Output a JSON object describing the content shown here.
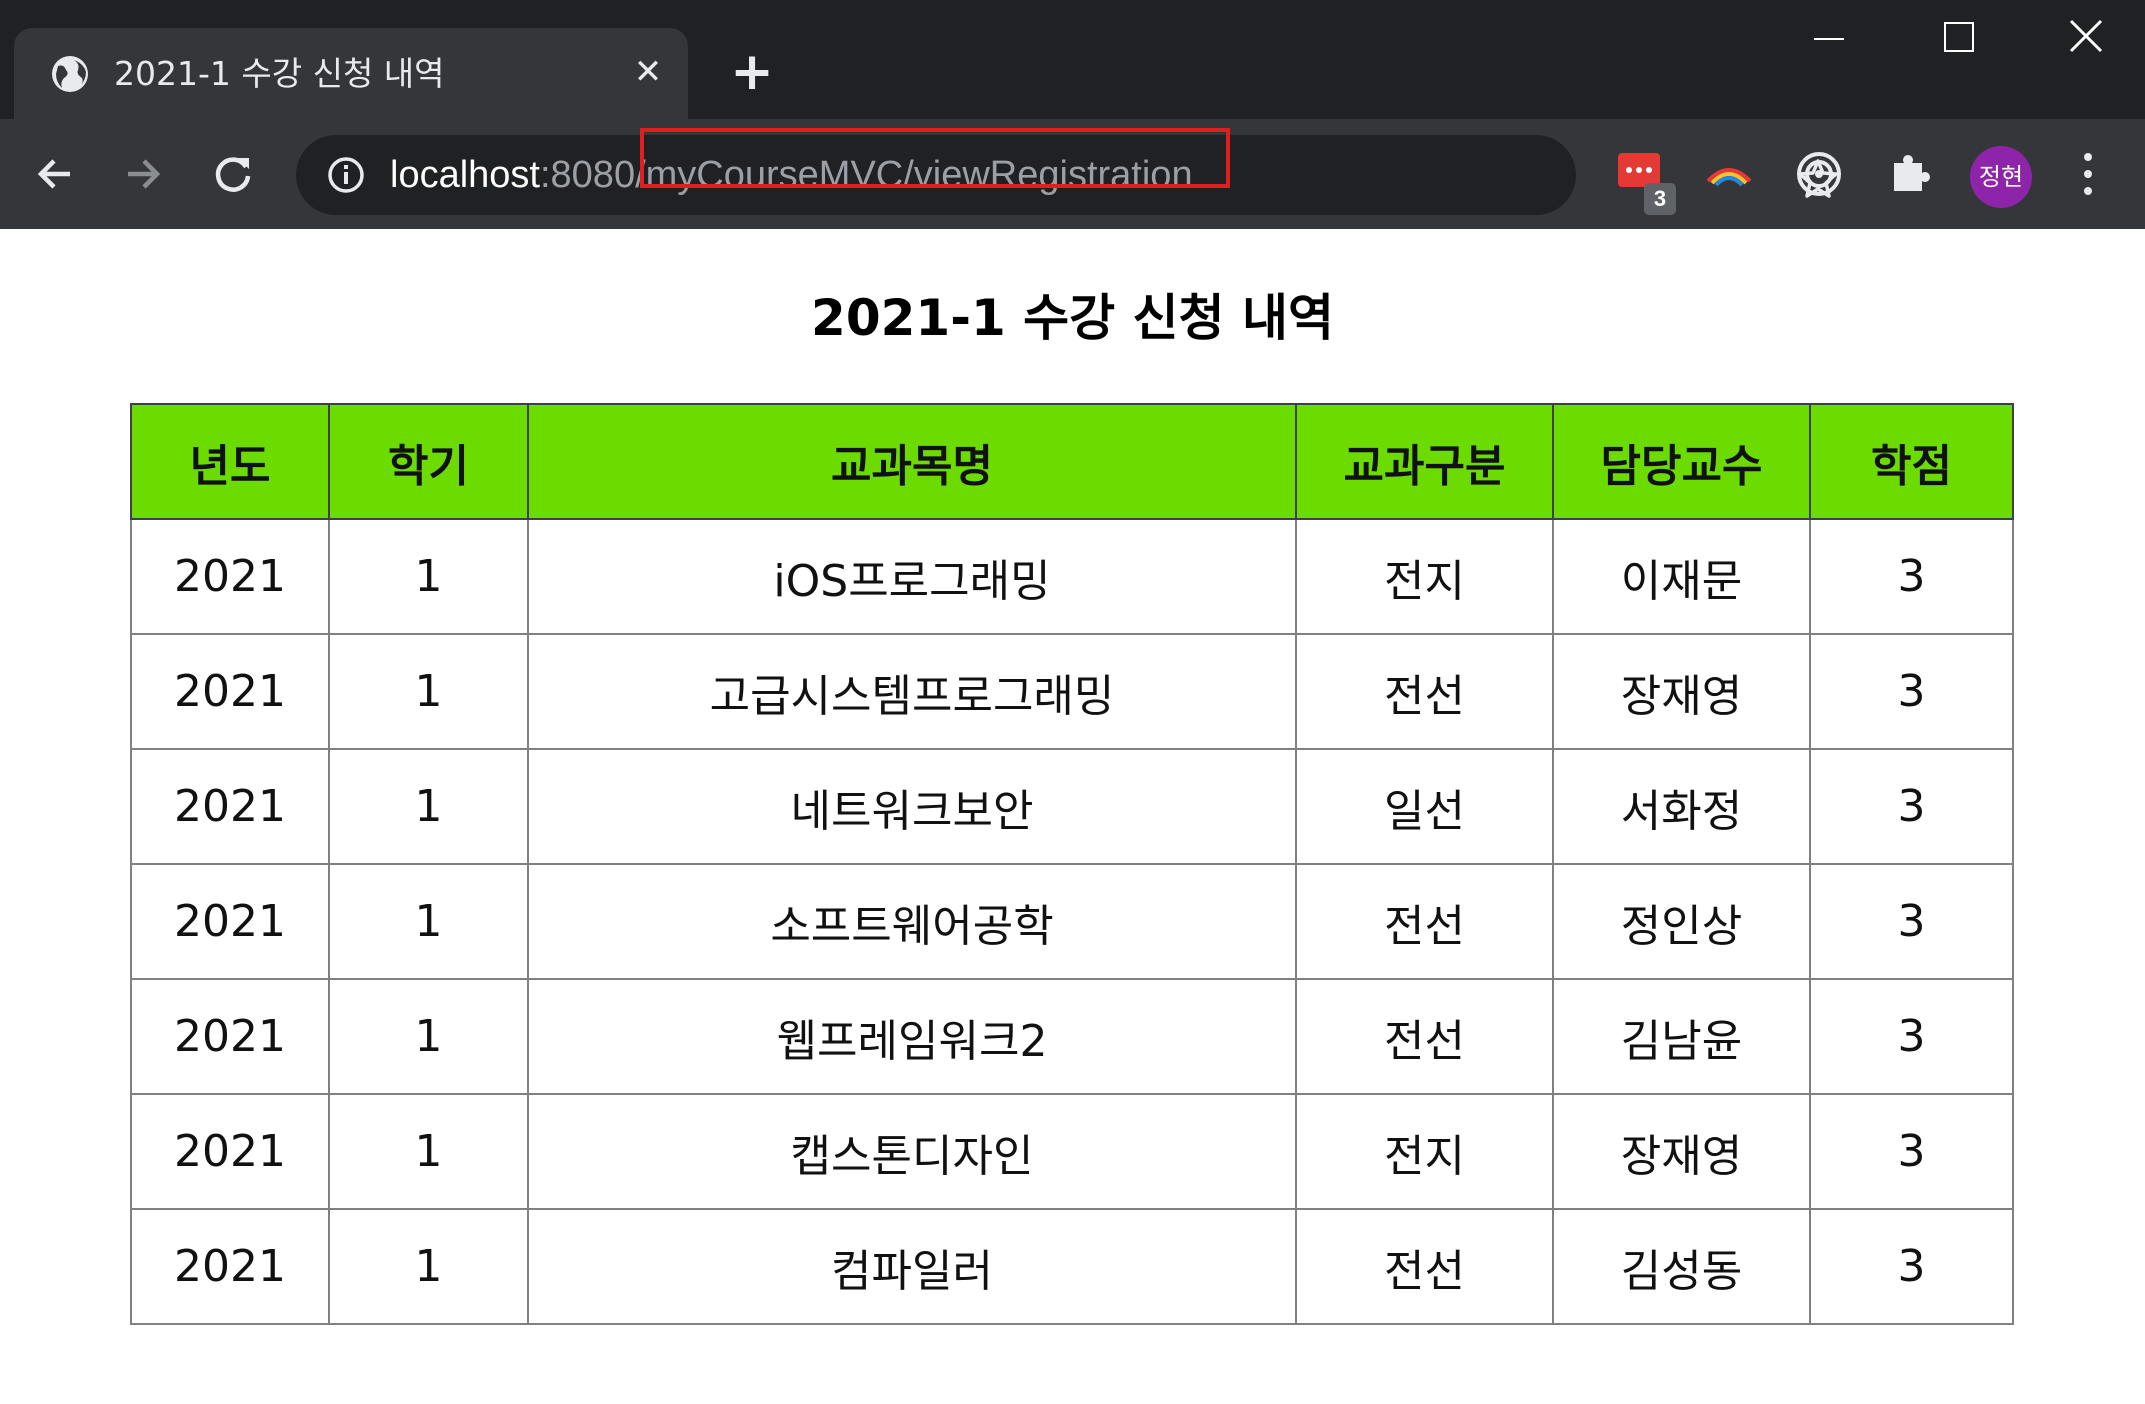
{
  "browser": {
    "tab_title": "2021-1 수강 신청 내역",
    "url_host": "localhost",
    "url_port": ":8080",
    "url_path": "/myCourseMVC/viewRegistration",
    "extension_badge": "3",
    "profile_name": "정현",
    "colors": {
      "highlight_box": "#e02020",
      "avatar": "#8e24aa"
    }
  },
  "page": {
    "title": "2021-1 수강 신청 내역",
    "header_color": "#6bdb00",
    "columns": [
      "년도",
      "학기",
      "교과목명",
      "교과구분",
      "담당교수",
      "학점"
    ],
    "rows": [
      [
        "2021",
        "1",
        "iOS프로그래밍",
        "전지",
        "이재문",
        "3"
      ],
      [
        "2021",
        "1",
        "고급시스템프로그래밍",
        "전선",
        "장재영",
        "3"
      ],
      [
        "2021",
        "1",
        "네트워크보안",
        "일선",
        "서화정",
        "3"
      ],
      [
        "2021",
        "1",
        "소프트웨어공학",
        "전선",
        "정인상",
        "3"
      ],
      [
        "2021",
        "1",
        "웹프레임워크2",
        "전선",
        "김남윤",
        "3"
      ],
      [
        "2021",
        "1",
        "캡스톤디자인",
        "전지",
        "장재영",
        "3"
      ],
      [
        "2021",
        "1",
        "컴파일러",
        "전선",
        "김성동",
        "3"
      ]
    ]
  }
}
